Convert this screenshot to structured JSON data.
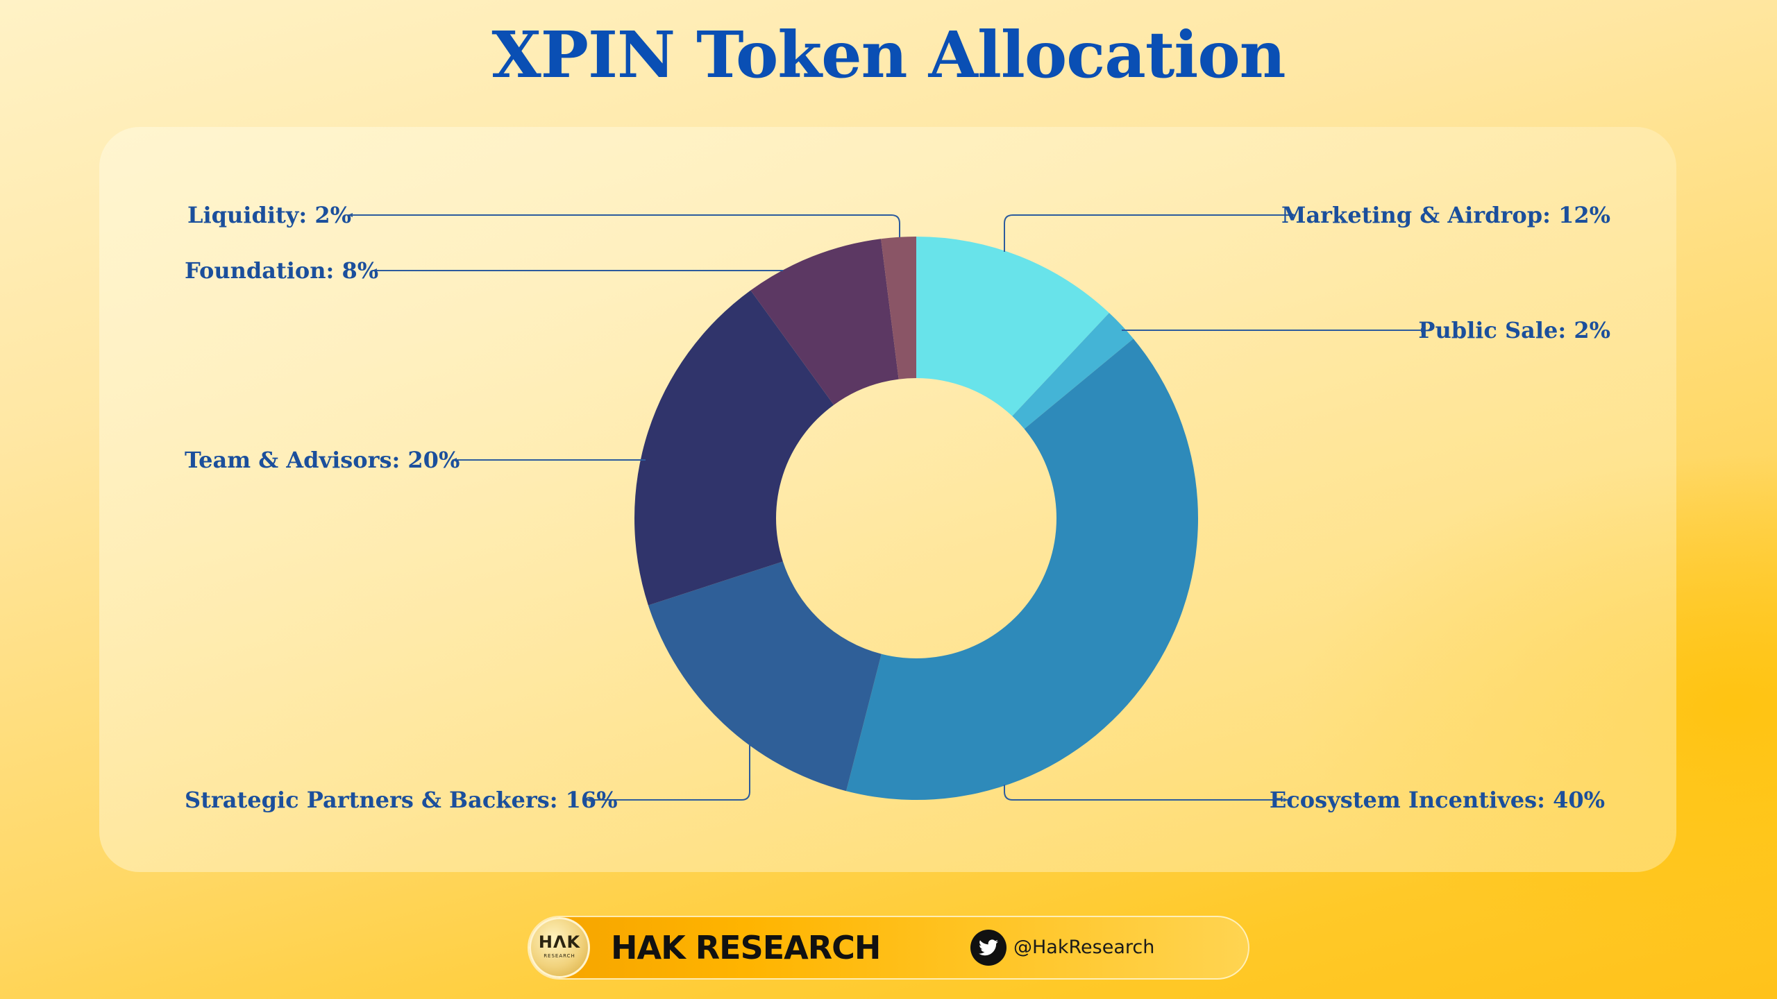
{
  "title": "XPIN Token Allocation",
  "chart_data": {
    "type": "pie",
    "variant": "donut",
    "title": "XPIN Token Allocation",
    "slices": [
      {
        "label": "Marketing & Airdrop",
        "value": 12,
        "display": "Marketing & Airdrop: 12%",
        "color": "#68e3ea",
        "side": "right"
      },
      {
        "label": "Public Sale",
        "value": 2,
        "display": "Public Sale: 2%",
        "color": "#44b4d6",
        "side": "right"
      },
      {
        "label": "Ecosystem Incentives",
        "value": 40,
        "display": "Ecosystem Incentives: 40%",
        "color": "#2e8aba",
        "side": "right"
      },
      {
        "label": "Strategic Partners & Backers",
        "value": 16,
        "display": "Strategic Partners & Backers: 16%",
        "color": "#2f5f98",
        "side": "left"
      },
      {
        "label": "Team & Advisors",
        "value": 20,
        "display": "Team & Advisors: 20%",
        "color": "#30346b",
        "side": "left"
      },
      {
        "label": "Foundation",
        "value": 8,
        "display": "Foundation: 8%",
        "color": "#5c3863",
        "side": "left"
      },
      {
        "label": "Liquidity",
        "value": 2,
        "display": "Liquidity: 2%",
        "color": "#8a5566",
        "side": "left"
      }
    ],
    "start_angle": "12 o'clock",
    "direction": "clockwise",
    "label_color": "#1b4f9c",
    "legend": "none"
  },
  "footer": {
    "logo_text": "HΛK",
    "logo_subtext": "RESEARCH",
    "brand": "HAK RESEARCH",
    "social_icon": "twitter-icon",
    "handle": "@HakResearch"
  },
  "colors": {
    "title": "#0a4fb4",
    "background": "#ffd866",
    "footer_pill": "#ffb400"
  }
}
